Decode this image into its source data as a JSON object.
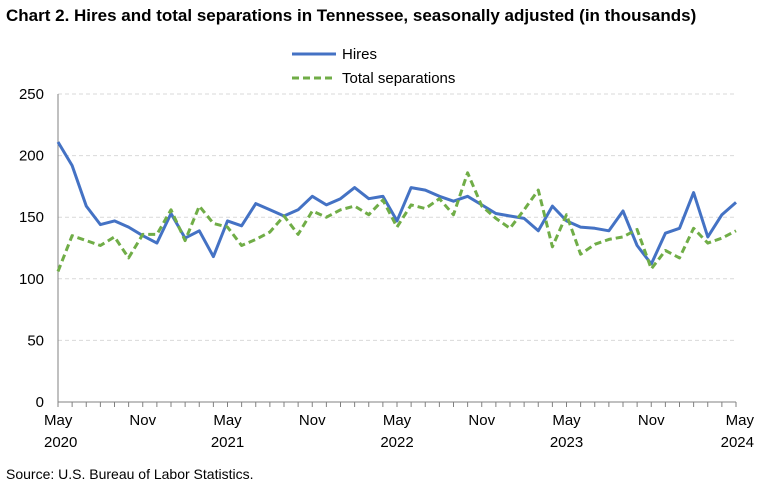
{
  "title": "Chart 2. Hires and total separations in Tennessee, seasonally adjusted (in thousands)",
  "source": "Source: U.S. Bureau of Labor Statistics.",
  "chart_data": {
    "type": "line",
    "title": "Chart 2. Hires and total separations in Tennessee, seasonally adjusted (in thousands)",
    "xlabel": "",
    "ylabel": "",
    "ylim": [
      0,
      250
    ],
    "yticks": [
      "0",
      "50",
      "100",
      "150",
      "200",
      "250"
    ],
    "grid": true,
    "legend": "top-center",
    "x": [
      "2020-05",
      "2020-06",
      "2020-07",
      "2020-08",
      "2020-09",
      "2020-10",
      "2020-11",
      "2020-12",
      "2021-01",
      "2021-02",
      "2021-03",
      "2021-04",
      "2021-05",
      "2021-06",
      "2021-07",
      "2021-08",
      "2021-09",
      "2021-10",
      "2021-11",
      "2021-12",
      "2022-01",
      "2022-02",
      "2022-03",
      "2022-04",
      "2022-05",
      "2022-06",
      "2022-07",
      "2022-08",
      "2022-09",
      "2022-10",
      "2022-11",
      "2022-12",
      "2023-01",
      "2023-02",
      "2023-03",
      "2023-04",
      "2023-05",
      "2023-06",
      "2023-07",
      "2023-08",
      "2023-09",
      "2023-10",
      "2023-11",
      "2023-12",
      "2024-01",
      "2024-02",
      "2024-03",
      "2024-04",
      "2024-05"
    ],
    "xtick_labels": [
      {
        "month": "May",
        "year": "2020",
        "index": 0
      },
      {
        "month": "Nov",
        "year": "",
        "index": 6
      },
      {
        "month": "May",
        "year": "2021",
        "index": 12
      },
      {
        "month": "Nov",
        "year": "",
        "index": 18
      },
      {
        "month": "May",
        "year": "2022",
        "index": 24
      },
      {
        "month": "Nov",
        "year": "",
        "index": 30
      },
      {
        "month": "May",
        "year": "2023",
        "index": 36
      },
      {
        "month": "Nov",
        "year": "",
        "index": 42
      },
      {
        "month": "May",
        "year": "2024",
        "index": 48
      }
    ],
    "series": [
      {
        "name": "Hires",
        "color": "#4472c4",
        "style": "solid",
        "values": [
          211,
          192,
          159,
          144,
          147,
          142,
          135,
          129,
          153,
          133,
          139,
          118,
          147,
          143,
          161,
          156,
          151,
          156,
          167,
          160,
          165,
          174,
          165,
          167,
          147,
          174,
          172,
          167,
          163,
          167,
          160,
          153,
          151,
          149,
          139,
          159,
          147,
          142,
          141,
          139,
          155,
          127,
          112,
          137,
          141,
          170,
          134,
          152,
          162
        ]
      },
      {
        "name": "Total separations",
        "color": "#70ad47",
        "style": "dashed",
        "values": [
          106,
          135,
          131,
          127,
          134,
          117,
          136,
          136,
          156,
          131,
          159,
          145,
          142,
          127,
          132,
          138,
          151,
          136,
          155,
          150,
          156,
          159,
          152,
          164,
          142,
          160,
          157,
          165,
          152,
          186,
          159,
          149,
          141,
          156,
          172,
          126,
          152,
          120,
          128,
          132,
          134,
          140,
          108,
          123,
          117,
          141,
          129,
          133,
          139
        ]
      }
    ]
  }
}
